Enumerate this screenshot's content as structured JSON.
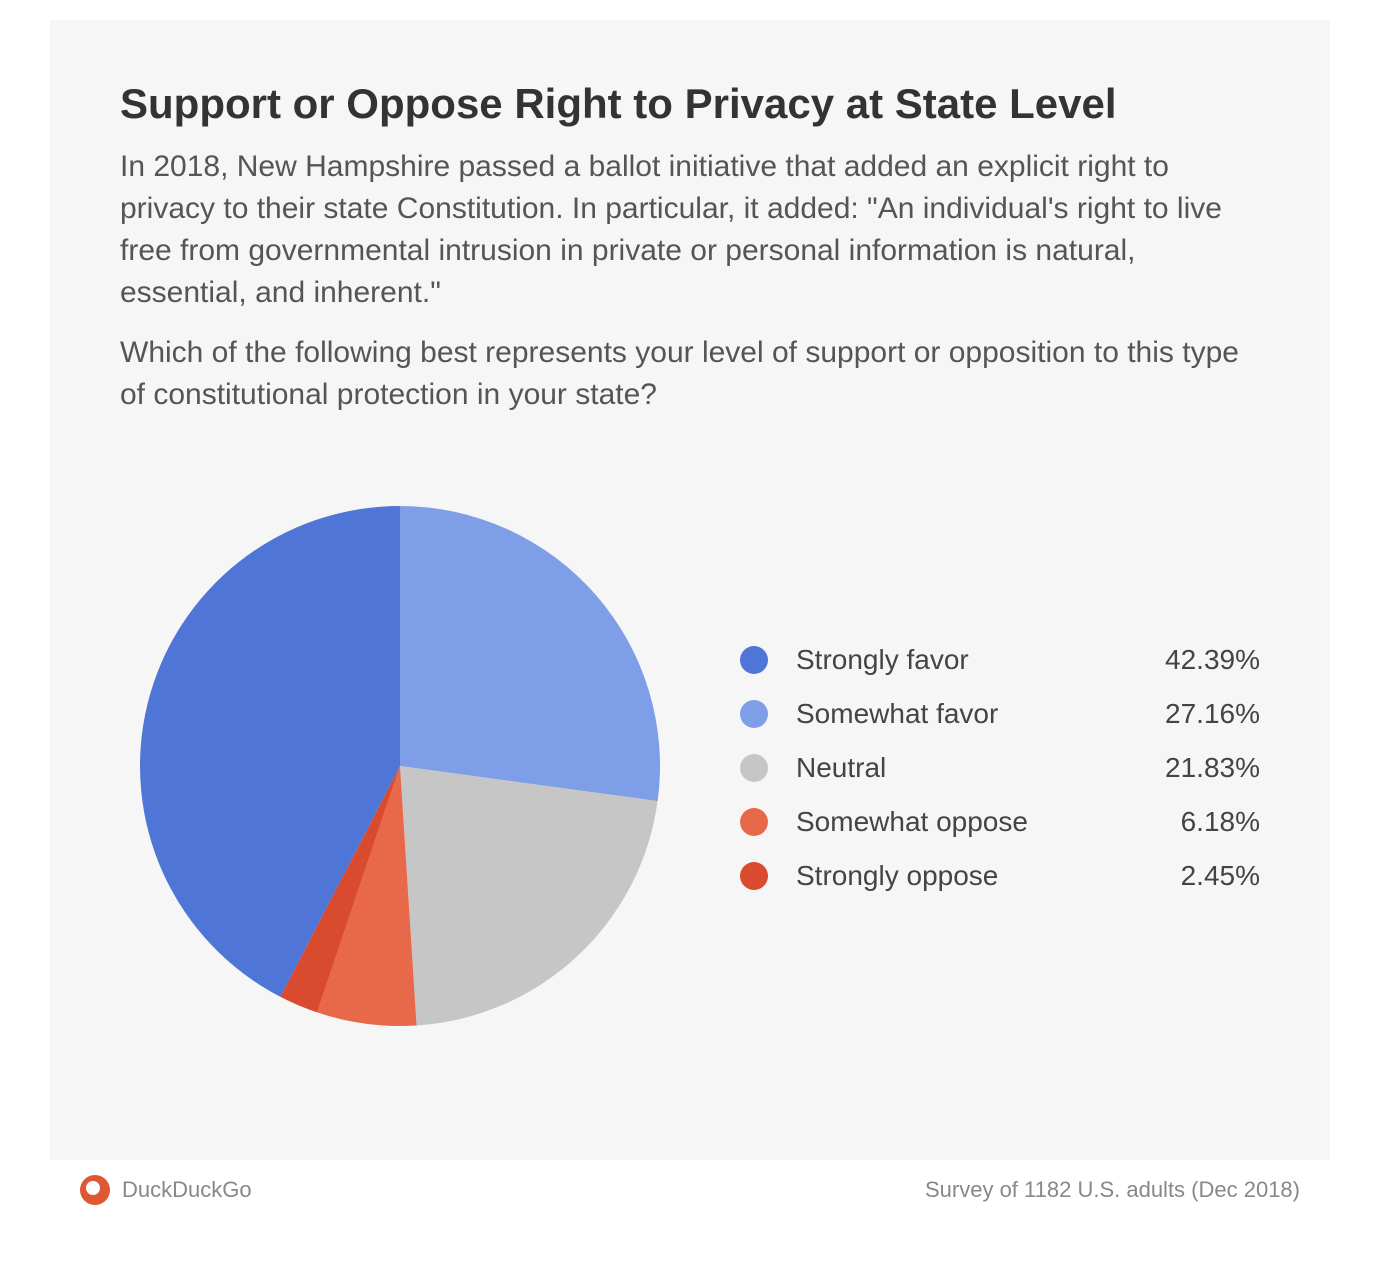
{
  "title": "Support or Oppose Right to Privacy at State Level",
  "paragraph1": "In 2018, New Hampshire passed a ballot initiative that added an explicit right to privacy to their state Constitution. In particular, it added: \"An individual's right to live free from governmental intrusion in private or personal information is natural, essential, and inherent.\"",
  "paragraph2": "Which of the following best represents your level of support or opposition to this type of constitutional protection in your state?",
  "chart": {
    "type": "pie",
    "radius": 260,
    "background_color": "#f6f6f6",
    "start_angle_deg": -90,
    "slices": [
      {
        "label": "Somewhat favor",
        "value": 27.16,
        "color": "#7f9ee8",
        "pct_text": "27.16%"
      },
      {
        "label": "Neutral",
        "value": 21.83,
        "color": "#c6c6c6",
        "pct_text": "21.83%"
      },
      {
        "label": "Somewhat oppose",
        "value": 6.18,
        "color": "#e8694a",
        "pct_text": "6.18%"
      },
      {
        "label": "Strongly oppose",
        "value": 2.45,
        "color": "#d94a2e",
        "pct_text": "2.45%"
      },
      {
        "label": "Strongly favor",
        "value": 42.39,
        "color": "#4f75d6",
        "pct_text": "42.39%"
      }
    ],
    "legend_order": [
      4,
      0,
      1,
      2,
      3
    ],
    "legend_fontsize": 28,
    "legend_text_color": "#444444",
    "swatch_size": 28
  },
  "footer": {
    "brand": "DuckDuckGo",
    "brand_logo_color": "#de5833",
    "note": "Survey of 1182 U.S. adults (Dec 2018)",
    "text_color": "#888888"
  },
  "card_bg": "#f6f6f6",
  "title_color": "#333333",
  "body_text_color": "#555555"
}
